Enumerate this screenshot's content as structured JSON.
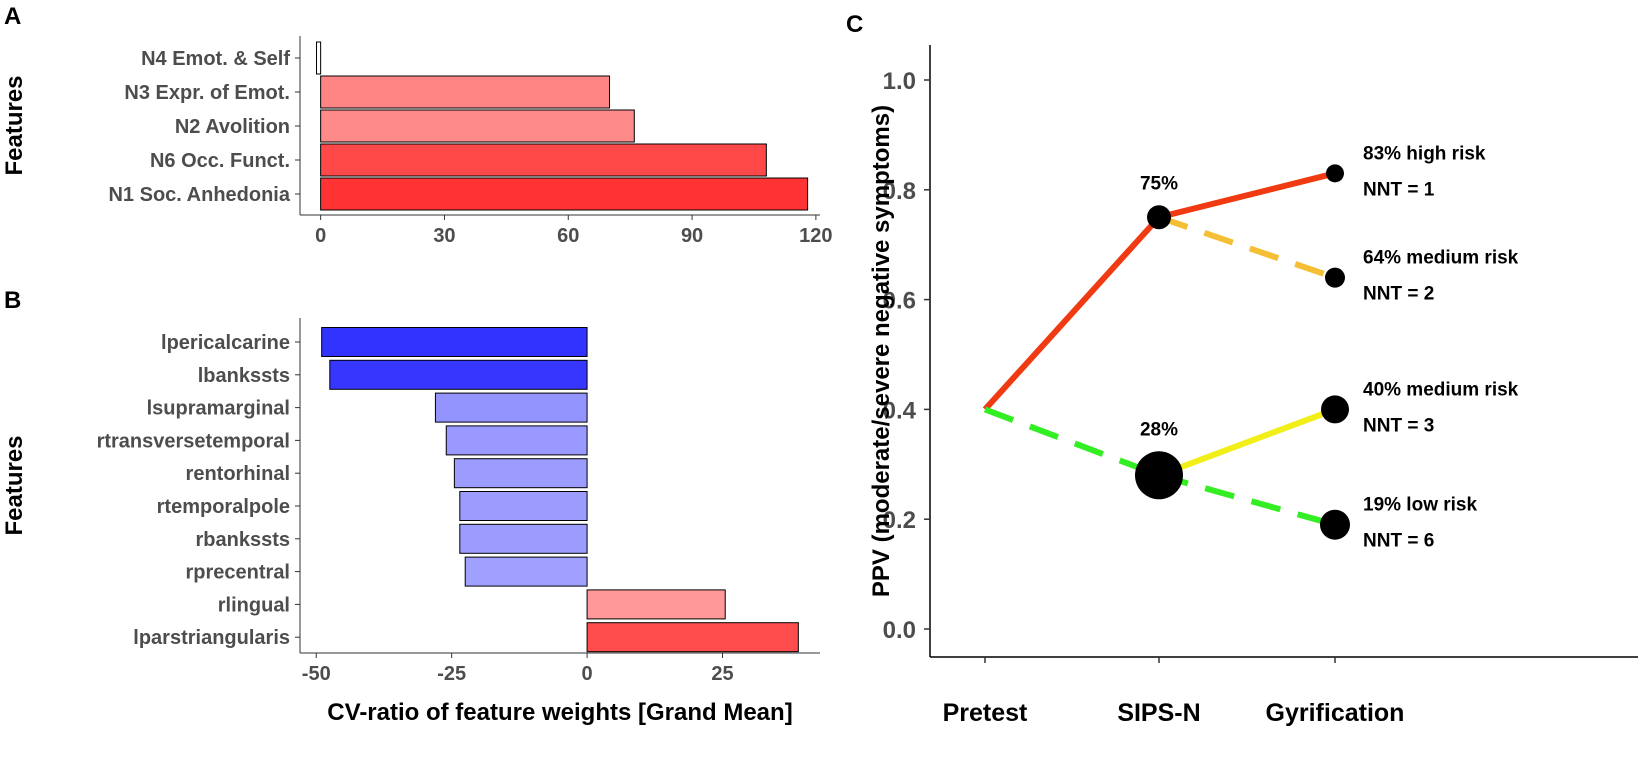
{
  "chart_data": [
    {
      "panel": "A",
      "type": "bar",
      "orientation": "horizontal",
      "ylabel": "Features",
      "xlabel": "",
      "categories": [
        "N4 Emot. & Self",
        "N3 Expr. of Emot.",
        "N2 Avolition",
        "N6 Occ. Funct.",
        "N1 Soc. Anhedonia"
      ],
      "values": [
        -1,
        70,
        76,
        108,
        118
      ],
      "colors": [
        "#ffffff",
        "#ff8585",
        "#ff8a8a",
        "#ff4848",
        "#ff3333"
      ],
      "xlim": [
        -5,
        121
      ],
      "xticks": [
        0,
        30,
        60,
        90,
        120
      ]
    },
    {
      "panel": "B",
      "type": "bar",
      "orientation": "horizontal",
      "ylabel": "Features",
      "xlabel": "CV-ratio of feature weights [Grand Mean]",
      "categories": [
        "lpericalcarine",
        "lbankssts",
        "lsupramarginal",
        "rtransversetemporal",
        "rentorhinal",
        "rtemporalpole",
        "rbankssts",
        "rprecentral",
        "rlingual",
        "lparstriangularis"
      ],
      "values": [
        -49,
        -47.5,
        -28,
        -26,
        -24.5,
        -23.5,
        -23.5,
        -22.5,
        25.5,
        39
      ],
      "colors": [
        "#3333ff",
        "#3636ff",
        "#9494ff",
        "#9999ff",
        "#9c9cff",
        "#9c9cff",
        "#9c9cff",
        "#a0a0ff",
        "#ff9999",
        "#ff4d4d"
      ],
      "xlim": [
        -53,
        43
      ],
      "xticks": [
        -50,
        -25,
        0,
        25
      ]
    },
    {
      "panel": "C",
      "type": "line",
      "ylabel": "PPV (moderate/severe negative symptoms)",
      "categories": [
        "Pretest",
        "SIPS-N",
        "Gyrification"
      ],
      "ylim": [
        -0.04,
        1.04
      ],
      "yticks": [
        "0.0",
        "0.2",
        "0.4",
        "0.6",
        "0.8",
        "1.0"
      ],
      "series": [
        {
          "name": "pretest-to-high",
          "x": [
            0,
            1
          ],
          "y": [
            0.4,
            0.75
          ],
          "color": "#f03a12",
          "dashed": false
        },
        {
          "name": "pretest-to-low",
          "x": [
            0,
            1
          ],
          "y": [
            0.4,
            0.28
          ],
          "color": "#33ee22",
          "dashed": true
        },
        {
          "name": "high-risk",
          "x": [
            1,
            2
          ],
          "y": [
            0.75,
            0.83
          ],
          "color": "#f03a12",
          "dashed": false
        },
        {
          "name": "medium-risk-from-high",
          "x": [
            1,
            2
          ],
          "y": [
            0.75,
            0.64
          ],
          "color": "#f5bf35",
          "dashed": true
        },
        {
          "name": "medium-risk-from-low",
          "x": [
            1,
            2
          ],
          "y": [
            0.28,
            0.4
          ],
          "color": "#f2ee18",
          "dashed": false
        },
        {
          "name": "low-risk",
          "x": [
            1,
            2
          ],
          "y": [
            0.28,
            0.19
          ],
          "color": "#33ee22",
          "dashed": true
        }
      ],
      "points": [
        {
          "x": 1,
          "y": 0.75,
          "size": 12,
          "label": "75%"
        },
        {
          "x": 1,
          "y": 0.28,
          "size": 24,
          "label": "28%"
        },
        {
          "x": 2,
          "y": 0.83,
          "size": 9
        },
        {
          "x": 2,
          "y": 0.64,
          "size": 10
        },
        {
          "x": 2,
          "y": 0.4,
          "size": 14
        },
        {
          "x": 2,
          "y": 0.19,
          "size": 15
        }
      ],
      "annotations": [
        {
          "y": 0.83,
          "risk": "83% high risk",
          "nnt": "NNT = 1"
        },
        {
          "y": 0.64,
          "risk": "64% medium risk",
          "nnt": "NNT = 2"
        },
        {
          "y": 0.4,
          "risk": "40% medium risk",
          "nnt": "NNT = 3"
        },
        {
          "y": 0.19,
          "risk": "19% low risk",
          "nnt": "NNT = 6"
        }
      ]
    }
  ],
  "panels": {
    "a": "A",
    "b": "B",
    "c": "C"
  }
}
